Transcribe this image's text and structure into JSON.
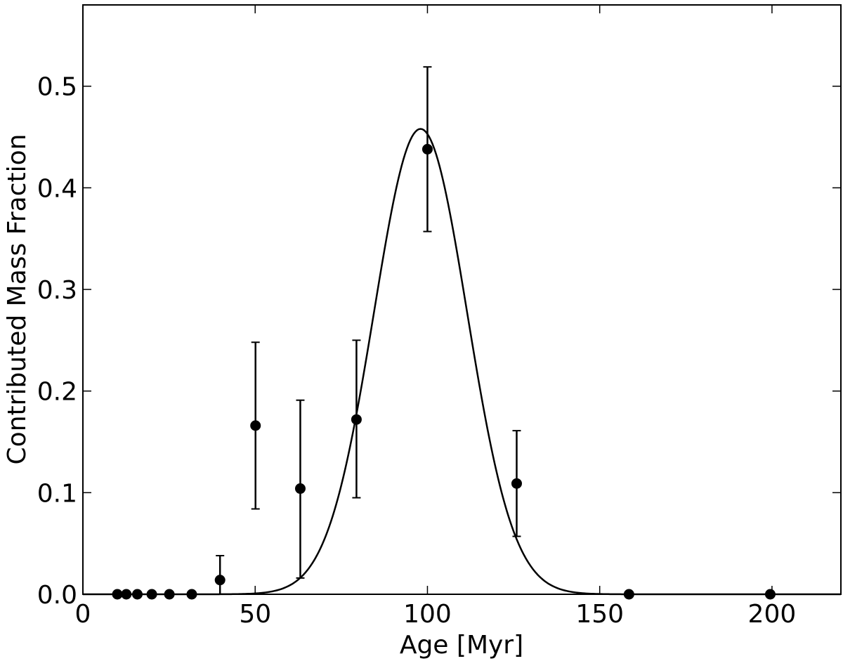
{
  "chart_data": {
    "type": "scatter",
    "title": "",
    "xlabel": "Age [Myr]",
    "ylabel": "Contributed Mass Fraction",
    "xlim": [
      0,
      220
    ],
    "ylim": [
      0,
      0.58
    ],
    "xticks": [
      0,
      50,
      100,
      150,
      200
    ],
    "xtick_labels": [
      "0",
      "50",
      "100",
      "150",
      "200"
    ],
    "yticks": [
      0.0,
      0.1,
      0.2,
      0.3,
      0.4,
      0.5
    ],
    "ytick_labels": [
      "0.0",
      "0.1",
      "0.2",
      "0.3",
      "0.4",
      "0.5"
    ],
    "grid": false,
    "legend": "none",
    "points": [
      {
        "x": 10,
        "y": 0.0
      },
      {
        "x": 12.6,
        "y": 0.0
      },
      {
        "x": 15.8,
        "y": 0.0
      },
      {
        "x": 20,
        "y": 0.0
      },
      {
        "x": 25.1,
        "y": 0.0
      },
      {
        "x": 31.6,
        "y": 0.0
      },
      {
        "x": 39.8,
        "y": 0.014,
        "err_low": 0.0,
        "err_high": 0.038
      },
      {
        "x": 50.1,
        "y": 0.166,
        "err_low": 0.084,
        "err_high": 0.248
      },
      {
        "x": 63.1,
        "y": 0.104,
        "err_low": 0.016,
        "err_high": 0.191
      },
      {
        "x": 79.4,
        "y": 0.172,
        "err_low": 0.095,
        "err_high": 0.25
      },
      {
        "x": 100,
        "y": 0.438,
        "err_low": 0.357,
        "err_high": 0.519
      },
      {
        "x": 125.9,
        "y": 0.109,
        "err_low": 0.057,
        "err_high": 0.161
      },
      {
        "x": 158.5,
        "y": 0.0
      },
      {
        "x": 199.5,
        "y": 0.0
      }
    ],
    "model_curve": {
      "type": "gaussian",
      "peak_x": 98,
      "peak_y": 0.458,
      "sigma": 13.5
    },
    "colors": {
      "points": "#000000",
      "curve": "#000000",
      "axes": "#000000"
    }
  }
}
